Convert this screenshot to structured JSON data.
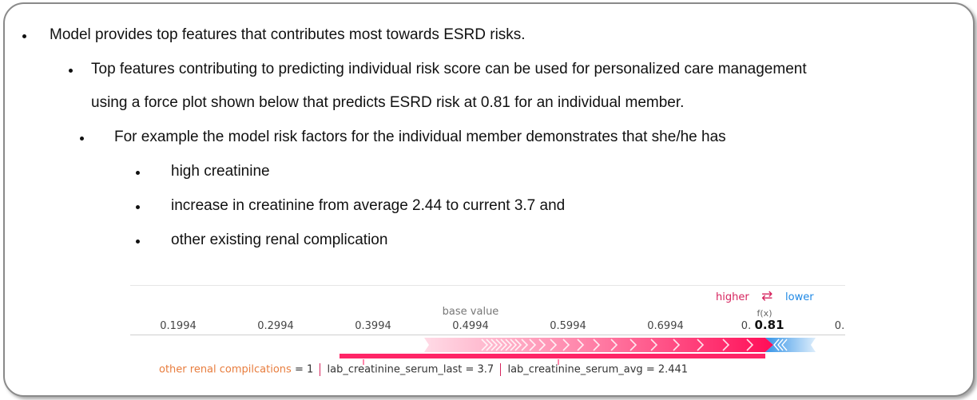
{
  "bullets": [
    {
      "level": 0,
      "text": "Model provides top features that contributes most towards ESRD risks."
    },
    {
      "level": 1,
      "text": "Top features contributing to predicting individual risk score can be used for personalized care management"
    },
    {
      "level": 1,
      "text": "using a force plot shown below that predicts ESRD risk at 0.81 for an individual member."
    },
    {
      "level": 2,
      "text": "For example the model risk factors for the individual member demonstrates that she/he has"
    },
    {
      "level": 3,
      "text": "high creatinine"
    },
    {
      "level": 3,
      "text": "increase in creatinine from average 2.44 to current 3.7 and"
    },
    {
      "level": 3,
      "text": "other existing renal complication"
    }
  ],
  "force_plot": {
    "legend": {
      "higher": "higher",
      "lower": "lower",
      "swap_icon": "swap-arrows-icon"
    },
    "fx_label": "f(x)",
    "fx_value": "0.81",
    "fx_tick_prefix": "0.",
    "base_value_label": "base value",
    "ticks": [
      "0.1994",
      "0.2994",
      "0.3994",
      "0.4994",
      "0.5994",
      "0.6994",
      "0.",
      "0."
    ],
    "features": [
      {
        "name": "other renal compilcations",
        "value": "1"
      },
      {
        "name": "lab_creatinine_serum_last",
        "value": "3.7"
      },
      {
        "name": "lab_creatinine_serum_avg",
        "value": "2.441"
      }
    ],
    "colors": {
      "higher": "#ff0d57",
      "lower": "#1e88e5",
      "label_orange": "#e87d3e"
    }
  }
}
